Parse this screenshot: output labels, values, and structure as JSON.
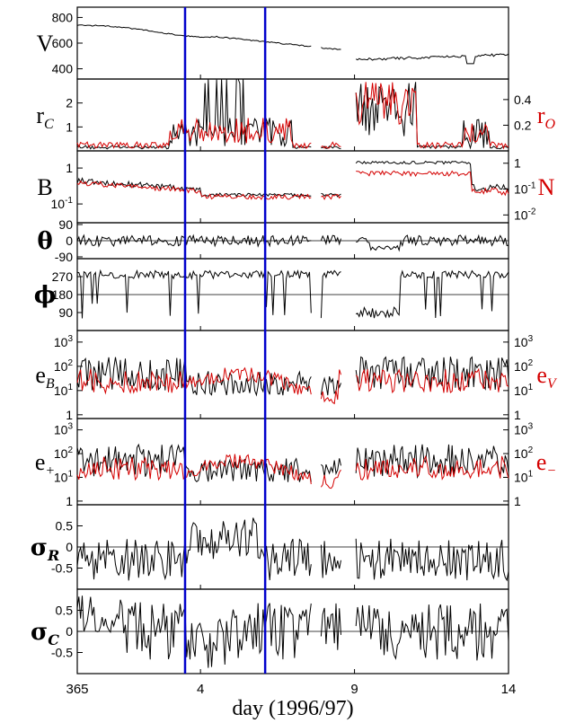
{
  "chart_data": {
    "type": "line",
    "xlabel": "day (1996/97)",
    "xticks": [
      "365",
      "4",
      "9",
      "14"
    ],
    "xticks_pos": [
      365,
      4,
      9,
      14
    ],
    "x_range": [
      365,
      14
    ],
    "vertical_markers": [
      3.5,
      6.1
    ],
    "panels": [
      {
        "id": "V",
        "left": {
          "label": "V",
          "sub": ""
        },
        "ticks": [
          {
            "v": 800,
            "t": "800"
          },
          {
            "v": 600,
            "t": "600"
          },
          {
            "v": 400,
            "t": "400"
          }
        ],
        "ylim": [
          320,
          880
        ],
        "series": [
          {
            "color": "#000000",
            "gen": "V",
            "seed": 3
          }
        ]
      },
      {
        "id": "rc",
        "left": {
          "label": "r",
          "sub": "C"
        },
        "right": {
          "label": "r",
          "sub": "O"
        },
        "ticks": [
          {
            "v": 2,
            "t": "2"
          },
          {
            "v": 1,
            "t": "1"
          }
        ],
        "rticks": [
          {
            "v": 0.4,
            "t": "0.4"
          },
          {
            "v": 0.2,
            "t": "0.2"
          }
        ],
        "ylim": [
          0,
          3
        ],
        "rlim": [
          0,
          0.56
        ],
        "series": [
          {
            "color": "#000000",
            "gen": "rc",
            "seed": 7
          },
          {
            "color": "#d40000",
            "gen": "ro",
            "seed": 11
          }
        ]
      },
      {
        "id": "B",
        "left": {
          "label": "B",
          "sub": ""
        },
        "right": {
          "label": "N",
          "sub": ""
        },
        "ticks": [
          {
            "v": 1,
            "t": "1"
          },
          {
            "v": 0.1,
            "t": "10-1",
            "exp": true
          }
        ],
        "rticks": [
          {
            "v": 1,
            "t": "1"
          },
          {
            "v": 0.1,
            "t": "10-1",
            "exp": true
          },
          {
            "v": 0.01,
            "t": "10-2",
            "exp": true
          }
        ],
        "log": true,
        "ylim": [
          0.03,
          3
        ],
        "rlim": [
          0.005,
          3
        ],
        "series": [
          {
            "color": "#000000",
            "gen": "B",
            "seed": 13
          },
          {
            "color": "#d40000",
            "gen": "N",
            "seed": 17
          }
        ]
      },
      {
        "id": "theta",
        "left": {
          "label": "θ",
          "sub": "",
          "greek": true
        },
        "ticks": [
          {
            "v": 90,
            "t": "90"
          },
          {
            "v": 0,
            "t": "0"
          },
          {
            "v": -90,
            "t": "-90"
          }
        ],
        "ylim": [
          -100,
          100
        ],
        "hline": 0,
        "series": [
          {
            "color": "#000000",
            "gen": "theta",
            "seed": 19
          }
        ]
      },
      {
        "id": "phi",
        "left": {
          "label": "ϕ",
          "sub": "",
          "greek": true
        },
        "ticks": [
          {
            "v": 270,
            "t": "270"
          },
          {
            "v": 180,
            "t": "180"
          },
          {
            "v": 90,
            "t": "90"
          }
        ],
        "ylim": [
          0,
          360
        ],
        "hline": 180,
        "series": [
          {
            "color": "#000000",
            "gen": "phi",
            "seed": 23
          }
        ]
      },
      {
        "id": "eb",
        "left": {
          "label": "e",
          "sub": "B"
        },
        "right": {
          "label": "e",
          "sub": "V"
        },
        "ticks": [
          {
            "v": 1000,
            "t": "10^3"
          },
          {
            "v": 100,
            "t": "10^2"
          },
          {
            "v": 10,
            "t": "10^1"
          },
          {
            "v": 1,
            "t": "1"
          }
        ],
        "rticks": [
          {
            "v": 1000,
            "t": "10^3"
          },
          {
            "v": 100,
            "t": "10^2"
          },
          {
            "v": 10,
            "t": "10^1"
          },
          {
            "v": 1,
            "t": "1"
          }
        ],
        "log": true,
        "ylim": [
          0.7,
          3000
        ],
        "rlim": [
          0.7,
          3000
        ],
        "series": [
          {
            "color": "#000000",
            "gen": "e",
            "seed": 29
          },
          {
            "color": "#d40000",
            "gen": "e2",
            "seed": 31
          }
        ]
      },
      {
        "id": "ep",
        "left": {
          "label": "e",
          "sub": "+"
        },
        "right": {
          "label": "e",
          "sub": "−"
        },
        "ticks": [
          {
            "v": 1000,
            "t": "10^3"
          },
          {
            "v": 100,
            "t": "10^2"
          },
          {
            "v": 10,
            "t": "10^1"
          },
          {
            "v": 1,
            "t": "1"
          }
        ],
        "rticks": [
          {
            "v": 1000,
            "t": "10^3"
          },
          {
            "v": 100,
            "t": "10^2"
          },
          {
            "v": 10,
            "t": "10^1"
          },
          {
            "v": 1,
            "t": "1"
          }
        ],
        "log": true,
        "ylim": [
          0.7,
          3000
        ],
        "rlim": [
          0.7,
          3000
        ],
        "series": [
          {
            "color": "#000000",
            "gen": "e",
            "seed": 37
          },
          {
            "color": "#d40000",
            "gen": "e2",
            "seed": 41
          }
        ]
      },
      {
        "id": "sr",
        "left": {
          "label": "σ",
          "sub": "R",
          "greek": true
        },
        "ticks": [
          {
            "v": 0.5,
            "t": "0.5"
          },
          {
            "v": 0,
            "t": "0"
          },
          {
            "v": -0.5,
            "t": "-0.5"
          }
        ],
        "ylim": [
          -1,
          1
        ],
        "hline": 0,
        "series": [
          {
            "color": "#000000",
            "gen": "sr",
            "seed": 43
          }
        ]
      },
      {
        "id": "sc",
        "left": {
          "label": "σ",
          "sub": "C",
          "greek": true
        },
        "ticks": [
          {
            "v": 0.5,
            "t": "0.5"
          },
          {
            "v": 0,
            "t": "0"
          },
          {
            "v": -0.5,
            "t": "-0.5"
          }
        ],
        "ylim": [
          -1,
          1
        ],
        "hline": 0,
        "series": [
          {
            "color": "#000000",
            "gen": "sc",
            "seed": 47
          }
        ]
      }
    ]
  },
  "colors": {
    "marker": "#0000cc",
    "series_black": "#000000",
    "series_red": "#d40000"
  }
}
